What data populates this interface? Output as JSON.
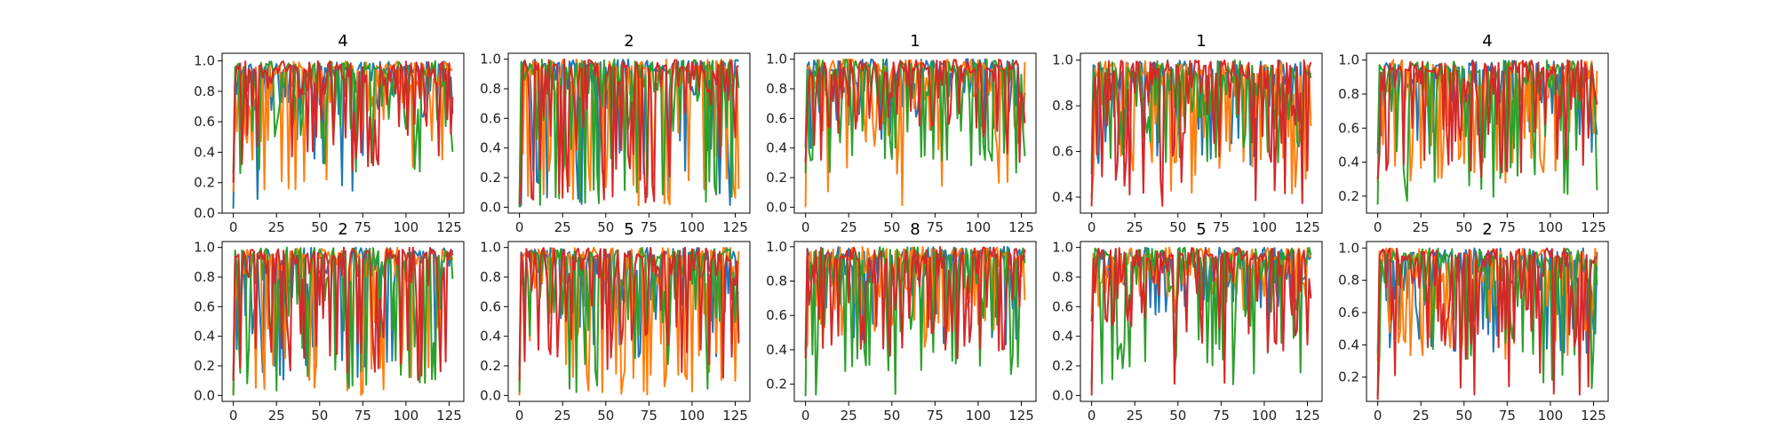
{
  "chart_data": {
    "type": "line",
    "layout": "2x5 grid of small-multiple line charts",
    "series_colors": [
      "#1f77b4",
      "#ff7f0e",
      "#2ca02c",
      "#d62728"
    ],
    "x_range": [
      0,
      127
    ],
    "grid": false,
    "panels": [
      {
        "title": "4",
        "ylim": [
          0.0,
          1.05
        ],
        "x_ticks": [
          0,
          25,
          50,
          75,
          100,
          125
        ],
        "y_ticks": [
          0.0,
          0.2,
          0.4,
          0.6,
          0.8,
          1.0
        ],
        "y_tick_labels": [
          "0.0",
          "0.2",
          "0.4",
          "0.6",
          "0.8",
          "1.0"
        ],
        "mins": [
          0.03,
          0.14,
          0.26,
          0.2
        ],
        "dip_level": [
          0.62,
          0.45,
          0.5,
          0.35
        ]
      },
      {
        "title": "2",
        "ylim": [
          -0.04,
          1.04
        ],
        "x_ticks": [
          0,
          25,
          50,
          75,
          100,
          125
        ],
        "y_ticks": [
          0.0,
          0.2,
          0.4,
          0.6,
          0.8,
          1.0
        ],
        "y_tick_labels": [
          "0.0",
          "0.2",
          "0.4",
          "0.6",
          "0.8",
          "1.0"
        ],
        "mins": [
          0.0,
          0.0,
          0.0,
          0.02
        ],
        "dip_level": [
          0.05,
          0.1,
          0.05,
          0.08
        ]
      },
      {
        "title": "1",
        "ylim": [
          -0.04,
          1.04
        ],
        "x_ticks": [
          0,
          25,
          50,
          75,
          100,
          125
        ],
        "y_ticks": [
          0.0,
          0.2,
          0.4,
          0.6,
          0.8,
          1.0
        ],
        "y_tick_labels": [
          "0.0",
          "0.2",
          "0.4",
          "0.6",
          "0.8",
          "1.0"
        ],
        "mins": [
          0.4,
          0.0,
          0.23,
          0.3
        ],
        "dip_level": [
          0.55,
          0.4,
          0.3,
          0.5
        ]
      },
      {
        "title": "1",
        "ylim": [
          0.33,
          1.03
        ],
        "x_ticks": [
          0,
          25,
          50,
          75,
          100,
          125
        ],
        "y_ticks": [
          0.4,
          0.6,
          0.8,
          1.0
        ],
        "y_tick_labels": [
          "0.4",
          "0.6",
          "0.8",
          "1.0"
        ],
        "mins": [
          0.5,
          0.4,
          0.55,
          0.36
        ],
        "dip_level": [
          0.55,
          0.48,
          0.6,
          0.52
        ]
      },
      {
        "title": "4",
        "ylim": [
          0.1,
          1.04
        ],
        "x_ticks": [
          0,
          25,
          50,
          75,
          100,
          125
        ],
        "y_ticks": [
          0.2,
          0.4,
          0.6,
          0.8,
          1.0
        ],
        "y_tick_labels": [
          "0.2",
          "0.4",
          "0.6",
          "0.8",
          "1.0"
        ],
        "mins": [
          0.45,
          0.28,
          0.15,
          0.3
        ],
        "dip_level": [
          0.55,
          0.35,
          0.3,
          0.4
        ]
      },
      {
        "title": "2",
        "ylim": [
          -0.04,
          1.04
        ],
        "x_ticks": [
          0,
          25,
          50,
          75,
          100,
          125
        ],
        "y_ticks": [
          0.0,
          0.2,
          0.4,
          0.6,
          0.8,
          1.0
        ],
        "y_tick_labels": [
          "0.0",
          "0.2",
          "0.4",
          "0.6",
          "0.8",
          "1.0"
        ],
        "mins": [
          0.1,
          0.0,
          0.0,
          0.1
        ],
        "dip_level": [
          0.2,
          0.1,
          0.08,
          0.15
        ]
      },
      {
        "title": "5",
        "ylim": [
          -0.04,
          1.04
        ],
        "x_ticks": [
          0,
          25,
          50,
          75,
          100,
          125
        ],
        "y_ticks": [
          0.0,
          0.2,
          0.4,
          0.6,
          0.8,
          1.0
        ],
        "y_tick_labels": [
          "0.0",
          "0.2",
          "0.4",
          "0.6",
          "0.8",
          "1.0"
        ],
        "mins": [
          0.2,
          0.0,
          0.02,
          0.1
        ],
        "dip_level": [
          0.45,
          0.1,
          0.4,
          0.3
        ]
      },
      {
        "title": "8",
        "ylim": [
          0.1,
          1.03
        ],
        "x_ticks": [
          0,
          25,
          50,
          75,
          100,
          125
        ],
        "y_ticks": [
          0.2,
          0.4,
          0.6,
          0.8,
          1.0
        ],
        "y_tick_labels": [
          "0.2",
          "0.4",
          "0.6",
          "0.8",
          "1.0"
        ],
        "mins": [
          0.4,
          0.4,
          0.13,
          0.35
        ],
        "dip_level": [
          0.55,
          0.5,
          0.3,
          0.4
        ]
      },
      {
        "title": "5",
        "ylim": [
          -0.04,
          1.04
        ],
        "x_ticks": [
          0,
          25,
          50,
          75,
          100,
          125
        ],
        "y_ticks": [
          0.0,
          0.2,
          0.4,
          0.6,
          0.8,
          1.0
        ],
        "y_tick_labels": [
          "0.0",
          "0.2",
          "0.4",
          "0.6",
          "0.8",
          "1.0"
        ],
        "mins": [
          0.5,
          0.55,
          0.07,
          0.0
        ],
        "dip_level": [
          0.6,
          0.65,
          0.2,
          0.3
        ]
      },
      {
        "title": "2",
        "ylim": [
          0.05,
          1.04
        ],
        "x_ticks": [
          0,
          25,
          50,
          75,
          100,
          125
        ],
        "y_ticks": [
          0.2,
          0.4,
          0.6,
          0.8,
          1.0
        ],
        "y_tick_labels": [
          "0.2",
          "0.4",
          "0.6",
          "0.8",
          "1.0"
        ],
        "mins": [
          0.35,
          0.3,
          0.08,
          0.06
        ],
        "dip_level": [
          0.45,
          0.4,
          0.3,
          0.35
        ]
      }
    ]
  }
}
